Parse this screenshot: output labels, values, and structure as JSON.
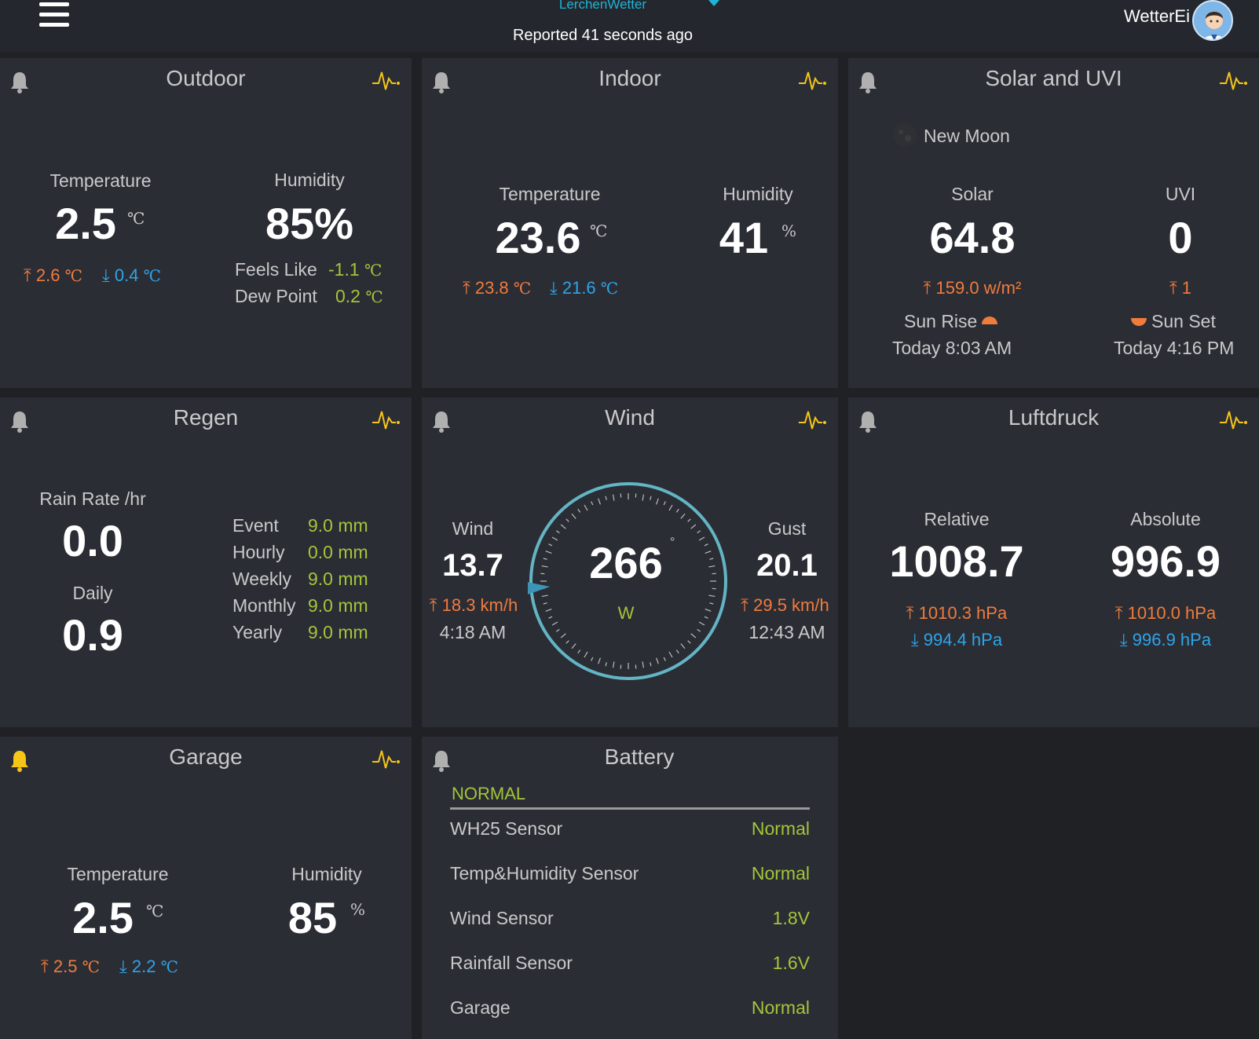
{
  "header": {
    "station_name": "LerchenWetter",
    "reported": "Reported 41 seconds ago",
    "user": "WetterEi"
  },
  "outdoor": {
    "title": "Outdoor",
    "temp_label": "Temperature",
    "temp_value": "2.5",
    "temp_unit": "℃",
    "temp_high": "2.6",
    "temp_low": "0.4",
    "deg": "℃",
    "hum_label": "Humidity",
    "hum_value": "85%",
    "feels_label": "Feels Like",
    "feels_value": "-1.1",
    "dew_label": "Dew Point",
    "dew_value": "0.2"
  },
  "indoor": {
    "title": "Indoor",
    "temp_label": "Temperature",
    "temp_value": "23.6",
    "temp_unit": "℃",
    "temp_high": "23.8",
    "temp_low": "21.6",
    "deg": "℃",
    "hum_label": "Humidity",
    "hum_value": "41",
    "hum_unit": "%"
  },
  "solar": {
    "title": "Solar and UVI",
    "moon": "New Moon",
    "solar_label": "Solar",
    "solar_value": "64.8",
    "solar_high": "159.0 w/m²",
    "uvi_label": "UVI",
    "uvi_value": "0",
    "uvi_high": "1",
    "sunrise_label": "Sun Rise",
    "sunrise_time": "Today 8:03 AM",
    "sunset_label": "Sun Set",
    "sunset_time": "Today 4:16 PM"
  },
  "rain": {
    "title": "Regen",
    "rate_label": "Rain Rate /hr",
    "rate_value": "0.0",
    "daily_label": "Daily",
    "daily_value": "0.9",
    "rows": [
      {
        "label": "Event",
        "value": "9.0 mm"
      },
      {
        "label": "Hourly",
        "value": "0.0 mm"
      },
      {
        "label": "Weekly",
        "value": "9.0 mm"
      },
      {
        "label": "Monthly",
        "value": "9.0 mm"
      },
      {
        "label": "Yearly",
        "value": "9.0 mm"
      }
    ]
  },
  "wind": {
    "title": "Wind",
    "wind_label": "Wind",
    "wind_value": "13.7",
    "wind_high": "18.3 km/h",
    "wind_time": "4:18 AM",
    "dir_value": "266",
    "dir_unit": "°",
    "dir_label": "W",
    "direction_deg": 266,
    "gust_label": "Gust",
    "gust_value": "20.1",
    "gust_high": "29.5 km/h",
    "gust_time": "12:43 AM"
  },
  "pressure": {
    "title": "Luftdruck",
    "rel_label": "Relative",
    "rel_value": "1008.7",
    "rel_high": "1010.3 hPa",
    "rel_low": "994.4 hPa",
    "abs_label": "Absolute",
    "abs_value": "996.9",
    "abs_high": "1010.0 hPa",
    "abs_low": "996.9 hPa"
  },
  "garage": {
    "title": "Garage",
    "temp_label": "Temperature",
    "temp_value": "2.5",
    "temp_unit": "℃",
    "temp_high": "2.5",
    "temp_low": "2.2",
    "deg": "℃",
    "hum_label": "Humidity",
    "hum_value": "85",
    "hum_unit": "%"
  },
  "battery": {
    "title": "Battery",
    "status": "NORMAL",
    "rows": [
      {
        "label": "WH25 Sensor",
        "value": "Normal"
      },
      {
        "label": "Temp&Humidity Sensor",
        "value": "Normal"
      },
      {
        "label": "Wind Sensor",
        "value": "1.8V"
      },
      {
        "label": "Rainfall Sensor",
        "value": "1.6V"
      },
      {
        "label": "Garage",
        "value": "Normal"
      }
    ]
  },
  "colors": {
    "background": "#1f2125",
    "panel": "#2b2d35",
    "high": "#f07c3c",
    "low": "#2fa4e7",
    "accent_green": "#a3c539",
    "pulse_yellow": "#f5c518",
    "compass_ring": "#63b5c4"
  }
}
